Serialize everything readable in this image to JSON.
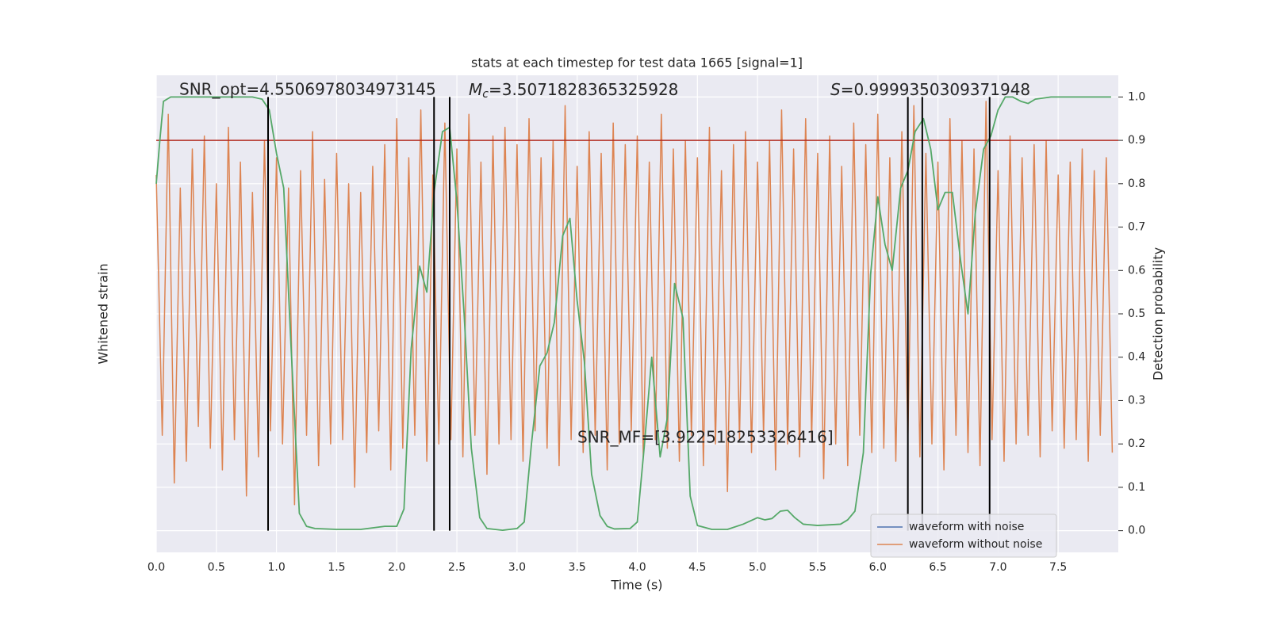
{
  "chart_data": {
    "type": "line",
    "title": "stats at each timestep for test data 1665 [signal=1]",
    "xlabel": "Time (s)",
    "ylabel": "Whitened strain",
    "y2label": "Detection probability",
    "xlim": [
      0,
      8
    ],
    "ylim": [
      -5.5,
      5.5
    ],
    "y2lim": [
      -0.05,
      1.05
    ],
    "xticks": [
      {
        "value": 0,
        "label": "0.0"
      },
      0.5,
      {
        "value": 1,
        "label": "1.0"
      },
      1.5,
      {
        "value": 2,
        "label": "2.0"
      },
      2.5,
      {
        "value": 3,
        "label": "3.0"
      },
      3.5,
      {
        "value": 4,
        "label": "4.0"
      },
      4.5,
      {
        "value": 5,
        "label": "5.0"
      },
      5.5,
      {
        "value": 6,
        "label": "6.0"
      },
      6.5,
      {
        "value": 7,
        "label": "7.0"
      },
      7.5
    ],
    "y2ticks": [
      {
        "value": 0,
        "label": "0.0"
      },
      0.1,
      0.2,
      0.3,
      0.4,
      0.5,
      0.6,
      0.7,
      0.8,
      0.9,
      {
        "value": 1,
        "label": "1.0"
      }
    ],
    "grid": true,
    "legend": "lower right",
    "threshold": 0.9,
    "threshold_color": "#b22c22",
    "vlines": [
      0.93,
      2.31,
      2.44,
      6.25,
      6.37,
      6.93
    ],
    "vline_color": "#000000",
    "annotations": [
      "SNR_opt=4.5506978034973145",
      {
        "symbol": "M",
        "subscript": "c",
        "text": "=3.5071828365325928"
      },
      {
        "symbol": "S",
        "text": "=0.9999350309371948"
      },
      "SNR_MF=[3.922518253326416]"
    ],
    "series": [
      {
        "name": "waveform with noise",
        "color": "#4c72b0",
        "axis": "y",
        "x": [],
        "values": []
      },
      {
        "name": "waveform without noise",
        "color": "#dd8452",
        "axis": "y",
        "x": [
          0,
          0.05,
          0.1,
          0.15,
          0.2,
          0.25,
          0.3,
          0.35,
          0.4,
          0.45,
          0.5,
          0.55,
          0.6,
          0.65,
          0.7,
          0.75,
          0.8,
          0.85,
          0.9,
          0.95,
          1,
          1.05,
          1.1,
          1.15,
          1.2,
          1.25,
          1.3,
          1.35,
          1.4,
          1.45,
          1.5,
          1.55,
          1.6,
          1.65,
          1.7,
          1.75,
          1.8,
          1.85,
          1.9,
          1.95,
          2,
          2.05,
          2.1,
          2.15,
          2.2,
          2.25,
          2.3,
          2.35,
          2.4,
          2.45,
          2.5,
          2.55,
          2.6,
          2.65,
          2.7,
          2.75,
          2.8,
          2.85,
          2.9,
          2.95,
          3,
          3.05,
          3.1,
          3.15,
          3.2,
          3.25,
          3.3,
          3.35,
          3.4,
          3.45,
          3.5,
          3.55,
          3.6,
          3.65,
          3.7,
          3.75,
          3.8,
          3.85,
          3.9,
          3.95,
          4,
          4.05,
          4.1,
          4.15,
          4.2,
          4.25,
          4.3,
          4.35,
          4.4,
          4.45,
          4.5,
          4.55,
          4.6,
          4.65,
          4.7,
          4.75,
          4.8,
          4.85,
          4.9,
          4.95,
          5,
          5.05,
          5.1,
          5.15,
          5.2,
          5.25,
          5.3,
          5.35,
          5.4,
          5.45,
          5.5,
          5.55,
          5.6,
          5.65,
          5.7,
          5.75,
          5.8,
          5.85,
          5.9,
          5.95,
          6,
          6.05,
          6.1,
          6.15,
          6.2,
          6.25,
          6.3,
          6.35,
          6.4,
          6.45,
          6.5,
          6.55,
          6.6,
          6.65,
          6.7,
          6.75,
          6.8,
          6.85,
          6.9,
          6.95,
          7,
          7.05,
          7.1,
          7.15,
          7.2,
          7.25,
          7.3,
          7.35,
          7.4,
          7.45,
          7.5,
          7.55,
          7.6,
          7.65,
          7.7,
          7.75,
          7.8,
          7.85,
          7.9,
          7.95
        ],
        "values": [
          3.2,
          -2.8,
          4.6,
          -3.9,
          2.9,
          -3.4,
          3.8,
          -2.6,
          4.1,
          -3.1,
          3.0,
          -3.6,
          4.3,
          -2.9,
          3.5,
          -4.2,
          2.8,
          -3.3,
          4.0,
          -2.7,
          3.6,
          -3.0,
          2.9,
          -4.4,
          3.3,
          -2.8,
          4.2,
          -3.5,
          3.1,
          -3.0,
          3.7,
          -2.9,
          3.0,
          -4.0,
          2.8,
          -3.2,
          3.4,
          -2.7,
          3.9,
          -3.6,
          4.5,
          -3.1,
          3.6,
          -2.8,
          4.7,
          -3.4,
          3.2,
          -3.0,
          4.4,
          -2.9,
          3.8,
          -3.3,
          4.6,
          -2.8,
          3.5,
          -3.7,
          4.1,
          -3.0,
          4.3,
          -2.9,
          3.9,
          -3.4,
          4.5,
          -2.7,
          3.6,
          -3.1,
          4.0,
          -3.5,
          4.8,
          -2.9,
          3.4,
          -3.2,
          4.2,
          -2.8,
          3.7,
          -3.6,
          4.4,
          -3.0,
          3.9,
          -2.7,
          4.1,
          -3.3,
          3.5,
          -2.9,
          4.6,
          -3.1,
          3.8,
          -3.4,
          4.0,
          -2.8,
          3.6,
          -3.5,
          4.3,
          -3.0,
          3.3,
          -4.1,
          3.9,
          -2.9,
          4.2,
          -3.2,
          3.5,
          -2.8,
          4.0,
          -3.6,
          4.7,
          -3.0,
          3.8,
          -3.3,
          4.5,
          -2.9,
          3.7,
          -3.8,
          4.1,
          -3.0,
          3.4,
          -3.5,
          4.4,
          -2.8,
          3.9,
          -3.2,
          4.6,
          -3.1,
          3.6,
          -3.4,
          4.2,
          -2.9,
          4.8,
          -3.3,
          3.7,
          -3.0,
          3.5,
          -3.6,
          4.5,
          -2.8,
          4.0,
          -3.2,
          3.8,
          -3.5,
          4.9,
          -2.9,
          3.3,
          -3.4,
          4.1,
          -3.0,
          3.6,
          -2.8,
          3.9,
          -3.3,
          4.0,
          -2.7,
          3.2,
          -3.1,
          3.5,
          -2.9,
          3.8,
          -3.4,
          3.3,
          -2.8,
          3.6,
          -3.2
        ]
      },
      {
        "color": "#55a868",
        "axis": "y2",
        "x": [
          0,
          0.03,
          0.06,
          0.12,
          0.4,
          0.6,
          0.8,
          0.88,
          0.94,
          1.0,
          1.06,
          1.12,
          1.19,
          1.25,
          1.32,
          1.5,
          1.7,
          1.9,
          2.0,
          2.06,
          2.12,
          2.19,
          2.25,
          2.31,
          2.38,
          2.44,
          2.5,
          2.56,
          2.62,
          2.69,
          2.75,
          2.88,
          3.0,
          3.06,
          3.12,
          3.19,
          3.25,
          3.31,
          3.38,
          3.44,
          3.5,
          3.56,
          3.62,
          3.69,
          3.75,
          3.81,
          3.94,
          4.0,
          4.06,
          4.12,
          4.19,
          4.25,
          4.31,
          4.38,
          4.44,
          4.5,
          4.62,
          4.75,
          4.88,
          5.0,
          5.06,
          5.12,
          5.19,
          5.25,
          5.31,
          5.38,
          5.5,
          5.69,
          5.75,
          5.81,
          5.88,
          5.94,
          6.0,
          6.06,
          6.12,
          6.19,
          6.25,
          6.31,
          6.38,
          6.44,
          6.5,
          6.56,
          6.62,
          6.69,
          6.75,
          6.81,
          6.88,
          6.94,
          7.0,
          7.06,
          7.12,
          7.19,
          7.25,
          7.31,
          7.44,
          7.62,
          7.94
        ],
        "values": [
          0.8,
          0.9,
          0.99,
          1.0,
          1.0,
          1.0,
          1.0,
          0.995,
          0.97,
          0.87,
          0.79,
          0.43,
          0.04,
          0.01,
          0.005,
          0.003,
          0.003,
          0.01,
          0.01,
          0.05,
          0.42,
          0.61,
          0.55,
          0.78,
          0.92,
          0.93,
          0.76,
          0.5,
          0.19,
          0.03,
          0.005,
          0.001,
          0.005,
          0.02,
          0.2,
          0.38,
          0.41,
          0.48,
          0.68,
          0.72,
          0.53,
          0.39,
          0.13,
          0.035,
          0.01,
          0.004,
          0.005,
          0.02,
          0.2,
          0.4,
          0.17,
          0.26,
          0.57,
          0.49,
          0.08,
          0.012,
          0.003,
          0.003,
          0.015,
          0.03,
          0.025,
          0.028,
          0.045,
          0.047,
          0.03,
          0.015,
          0.012,
          0.015,
          0.025,
          0.045,
          0.18,
          0.59,
          0.77,
          0.66,
          0.6,
          0.79,
          0.83,
          0.92,
          0.95,
          0.88,
          0.74,
          0.78,
          0.78,
          0.62,
          0.5,
          0.73,
          0.88,
          0.91,
          0.97,
          1.0,
          1.0,
          0.99,
          0.985,
          0.995,
          1.0,
          1.0,
          1.0
        ]
      }
    ]
  }
}
